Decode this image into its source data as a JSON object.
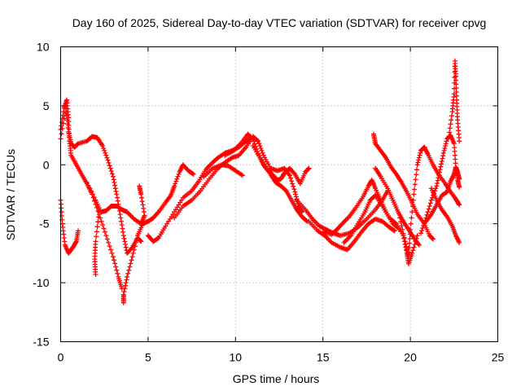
{
  "chart_data": {
    "type": "scatter",
    "title": "Day 160 of 2025, Sidereal Day-to-day VTEC variation (SDTVAR) for receiver cpvg",
    "xlabel": "GPS time / hours",
    "ylabel": "SDTVAR / TECUs",
    "xlim": [
      0,
      25
    ],
    "ylim": [
      -15,
      10
    ],
    "xticks": [
      "0",
      "5",
      "10",
      "15",
      "20",
      "25"
    ],
    "yticks": [
      "-15",
      "-10",
      "-5",
      "0",
      "5",
      "10"
    ],
    "grid": true,
    "marker": "plus",
    "color": "#ff0000",
    "series": [
      {
        "name": "trace-1",
        "points": [
          [
            0.0,
            3.0
          ],
          [
            0.2,
            4.8
          ],
          [
            0.35,
            5.5
          ],
          [
            0.45,
            4.0
          ],
          [
            0.5,
            2.0
          ],
          [
            0.6,
            0.8
          ],
          [
            0.9,
            0.0
          ],
          [
            1.2,
            -0.8
          ],
          [
            1.5,
            -1.6
          ],
          [
            1.8,
            -2.5
          ],
          [
            2.2,
            -4.2
          ],
          [
            2.6,
            -6.0
          ],
          [
            3.0,
            -7.8
          ],
          [
            3.3,
            -9.5
          ],
          [
            3.5,
            -10.5
          ]
        ]
      },
      {
        "name": "trace-2",
        "points": [
          [
            0.0,
            2.2
          ],
          [
            0.3,
            4.8
          ],
          [
            0.45,
            2.8
          ],
          [
            0.6,
            1.8
          ],
          [
            0.8,
            1.5
          ],
          [
            1.0,
            1.8
          ],
          [
            1.5,
            2.0
          ],
          [
            1.8,
            2.4
          ],
          [
            2.1,
            2.3
          ],
          [
            2.4,
            1.6
          ],
          [
            2.7,
            0.4
          ],
          [
            3.0,
            -1.0
          ],
          [
            3.2,
            -2.5
          ],
          [
            3.4,
            -4.2
          ],
          [
            3.6,
            -6.0
          ],
          [
            3.8,
            -7.5
          ],
          [
            4.1,
            -7.0
          ],
          [
            4.4,
            -6.2
          ],
          [
            4.6,
            -6.5
          ]
        ]
      },
      {
        "name": "trace-3",
        "points": [
          [
            0.0,
            -3.0
          ],
          [
            0.1,
            -5.0
          ],
          [
            0.25,
            -6.8
          ],
          [
            0.45,
            -7.5
          ],
          [
            0.7,
            -7.0
          ],
          [
            0.9,
            -6.5
          ],
          [
            1.0,
            -5.6
          ]
        ]
      },
      {
        "name": "trace-4",
        "points": [
          [
            1.5,
            -1.5
          ],
          [
            2.0,
            -3.0
          ],
          [
            2.3,
            -4.0
          ],
          [
            2.6,
            -3.9
          ],
          [
            2.9,
            -3.5
          ],
          [
            3.2,
            -3.5
          ],
          [
            3.5,
            -3.8
          ],
          [
            3.8,
            -4.0
          ],
          [
            4.2,
            -4.6
          ],
          [
            4.6,
            -5.0
          ],
          [
            4.8,
            -4.3
          ],
          [
            4.6,
            -2.5
          ],
          [
            4.5,
            -1.8
          ]
        ]
      },
      {
        "name": "trace-5",
        "points": [
          [
            2.2,
            -4.0
          ],
          [
            2.0,
            -6.5
          ],
          [
            1.95,
            -8.0
          ],
          [
            2.0,
            -9.3
          ]
        ]
      },
      {
        "name": "trace-6",
        "points": [
          [
            3.6,
            -11.7
          ],
          [
            3.6,
            -11.0
          ],
          [
            3.8,
            -9.5
          ],
          [
            4.1,
            -7.8
          ],
          [
            4.4,
            -6.0
          ],
          [
            4.7,
            -5.0
          ],
          [
            5.0,
            -4.8
          ],
          [
            5.3,
            -4.5
          ],
          [
            5.6,
            -4.0
          ],
          [
            6.0,
            -3.2
          ],
          [
            6.3,
            -2.6
          ],
          [
            6.5,
            -1.8
          ],
          [
            6.8,
            -0.6
          ],
          [
            7.0,
            0.0
          ],
          [
            7.3,
            -0.5
          ],
          [
            7.6,
            -0.8
          ]
        ]
      },
      {
        "name": "trace-7",
        "points": [
          [
            5.0,
            -6.0
          ],
          [
            5.3,
            -6.5
          ],
          [
            5.6,
            -6.2
          ],
          [
            6.0,
            -5.2
          ],
          [
            6.5,
            -4.0
          ],
          [
            7.0,
            -2.8
          ],
          [
            7.5,
            -2.2
          ],
          [
            7.9,
            -1.4
          ],
          [
            8.3,
            -0.4
          ],
          [
            8.7,
            0.2
          ],
          [
            9.0,
            0.6
          ],
          [
            9.4,
            1.0
          ],
          [
            9.8,
            1.2
          ],
          [
            10.2,
            1.5
          ],
          [
            10.5,
            1.9
          ],
          [
            10.8,
            2.2
          ]
        ]
      },
      {
        "name": "trace-8",
        "points": [
          [
            6.5,
            -4.5
          ],
          [
            7.0,
            -3.5
          ],
          [
            7.5,
            -3.0
          ],
          [
            8.0,
            -2.2
          ],
          [
            8.5,
            -1.2
          ],
          [
            9.0,
            -0.3
          ],
          [
            9.4,
            0.2
          ],
          [
            9.8,
            0.6
          ],
          [
            10.2,
            0.8
          ],
          [
            10.6,
            1.5
          ],
          [
            11.0,
            2.4
          ],
          [
            11.3,
            2.0
          ],
          [
            11.6,
            0.8
          ],
          [
            12.0,
            -0.3
          ],
          [
            12.4,
            -0.5
          ],
          [
            12.8,
            -0.3
          ],
          [
            13.1,
            -0.9
          ],
          [
            13.4,
            -2.3
          ],
          [
            13.6,
            -3.5
          ],
          [
            13.8,
            -4.0
          ]
        ]
      },
      {
        "name": "trace-9",
        "points": [
          [
            8.2,
            -1.0
          ],
          [
            8.7,
            -0.3
          ],
          [
            9.2,
            0.0
          ],
          [
            9.6,
            -0.1
          ],
          [
            10.0,
            -0.5
          ],
          [
            10.4,
            -0.9
          ]
        ]
      },
      {
        "name": "trace-10",
        "points": [
          [
            9.4,
            0.8
          ],
          [
            9.9,
            1.2
          ],
          [
            10.3,
            1.8
          ],
          [
            10.7,
            2.6
          ],
          [
            11.0,
            2.2
          ],
          [
            11.3,
            0.9
          ],
          [
            11.6,
            0.0
          ],
          [
            12.0,
            -0.8
          ],
          [
            12.3,
            -1.5
          ],
          [
            12.6,
            -1.8
          ],
          [
            12.9,
            -2.2
          ],
          [
            13.2,
            -3.0
          ],
          [
            13.5,
            -3.8
          ],
          [
            13.8,
            -4.4
          ],
          [
            14.1,
            -4.8
          ]
        ]
      },
      {
        "name": "trace-11",
        "points": [
          [
            11.0,
            1.6
          ],
          [
            11.4,
            0.6
          ],
          [
            11.7,
            -0.2
          ],
          [
            12.1,
            -0.8
          ],
          [
            12.4,
            -1.3
          ],
          [
            12.6,
            -1.2
          ],
          [
            12.8,
            -0.7
          ],
          [
            13.1,
            -0.3
          ],
          [
            13.4,
            -0.8
          ],
          [
            13.7,
            -1.6
          ],
          [
            14.0,
            -0.6
          ],
          [
            14.2,
            -0.3
          ]
        ]
      },
      {
        "name": "trace-12",
        "points": [
          [
            13.5,
            -3.0
          ],
          [
            14.0,
            -3.8
          ],
          [
            14.4,
            -4.6
          ],
          [
            14.8,
            -5.2
          ],
          [
            15.2,
            -5.5
          ],
          [
            15.6,
            -5.8
          ],
          [
            16.0,
            -6.0
          ],
          [
            16.5,
            -5.8
          ],
          [
            17.0,
            -5.3
          ],
          [
            17.5,
            -4.6
          ],
          [
            18.0,
            -3.8
          ],
          [
            18.4,
            -3.0
          ],
          [
            18.7,
            -2.2
          ]
        ]
      },
      {
        "name": "trace-13",
        "points": [
          [
            14.2,
            -4.8
          ],
          [
            14.7,
            -5.6
          ],
          [
            15.1,
            -6.0
          ],
          [
            15.5,
            -6.6
          ],
          [
            16.0,
            -7.0
          ],
          [
            16.4,
            -7.2
          ],
          [
            16.8,
            -6.5
          ],
          [
            17.2,
            -5.7
          ],
          [
            17.6,
            -5.0
          ],
          [
            18.0,
            -4.6
          ],
          [
            18.4,
            -4.8
          ],
          [
            18.8,
            -5.3
          ],
          [
            19.1,
            -5.6
          ]
        ]
      },
      {
        "name": "trace-14",
        "points": [
          [
            15.0,
            -5.7
          ],
          [
            15.5,
            -5.9
          ],
          [
            15.8,
            -5.5
          ],
          [
            16.1,
            -5.0
          ],
          [
            16.5,
            -4.4
          ],
          [
            16.9,
            -3.6
          ],
          [
            17.3,
            -2.7
          ],
          [
            17.6,
            -1.8
          ],
          [
            17.8,
            -1.3
          ],
          [
            18.0,
            -2.0
          ],
          [
            18.3,
            -3.0
          ],
          [
            18.6,
            -4.0
          ],
          [
            19.0,
            -5.0
          ],
          [
            19.4,
            -5.5
          ]
        ]
      },
      {
        "name": "trace-15",
        "points": [
          [
            16.2,
            -6.6
          ],
          [
            16.6,
            -6.0
          ],
          [
            17.0,
            -5.0
          ],
          [
            17.4,
            -4.0
          ],
          [
            17.7,
            -3.0
          ],
          [
            18.0,
            -2.6
          ],
          [
            18.4,
            -3.5
          ],
          [
            18.8,
            -4.5
          ],
          [
            19.2,
            -5.0
          ],
          [
            19.6,
            -6.0
          ],
          [
            19.8,
            -7.5
          ],
          [
            19.9,
            -8.4
          ],
          [
            20.1,
            -7.5
          ],
          [
            20.4,
            -6.0
          ]
        ]
      },
      {
        "name": "trace-16",
        "points": [
          [
            17.9,
            2.6
          ],
          [
            18.0,
            1.8
          ],
          [
            18.3,
            1.2
          ],
          [
            18.6,
            0.6
          ],
          [
            18.9,
            -0.2
          ],
          [
            19.2,
            -0.8
          ],
          [
            19.5,
            -1.5
          ],
          [
            19.8,
            -2.3
          ],
          [
            20.1,
            -3.2
          ],
          [
            20.4,
            -4.2
          ],
          [
            20.8,
            -5.0
          ],
          [
            21.1,
            -6.0
          ],
          [
            21.3,
            -6.3
          ]
        ]
      },
      {
        "name": "trace-17",
        "points": [
          [
            18.0,
            -0.3
          ],
          [
            18.3,
            -1.0
          ],
          [
            18.7,
            -2.0
          ],
          [
            19.0,
            -3.0
          ],
          [
            19.3,
            -4.0
          ],
          [
            19.6,
            -4.8
          ],
          [
            19.9,
            -5.5
          ],
          [
            20.2,
            -6.2
          ],
          [
            20.5,
            -6.8
          ]
        ]
      },
      {
        "name": "trace-18",
        "points": [
          [
            19.4,
            -4.5
          ],
          [
            19.7,
            -6.5
          ],
          [
            19.9,
            -7.8
          ],
          [
            20.0,
            -5.5
          ],
          [
            20.2,
            -2.5
          ],
          [
            20.4,
            0.0
          ],
          [
            20.6,
            1.2
          ],
          [
            20.8,
            1.5
          ],
          [
            21.0,
            0.9
          ],
          [
            21.3,
            0.0
          ],
          [
            21.6,
            -0.8
          ],
          [
            22.0,
            -1.6
          ],
          [
            22.3,
            -2.3
          ],
          [
            22.6,
            -2.9
          ],
          [
            22.8,
            -3.4
          ]
        ]
      },
      {
        "name": "trace-19",
        "points": [
          [
            20.6,
            -5.8
          ],
          [
            20.9,
            -4.5
          ],
          [
            21.2,
            -3.0
          ],
          [
            21.5,
            -1.8
          ],
          [
            21.7,
            -0.4
          ],
          [
            21.9,
            1.0
          ],
          [
            22.1,
            2.2
          ],
          [
            22.3,
            2.5
          ],
          [
            22.5,
            1.8
          ],
          [
            22.6,
            -0.2
          ],
          [
            22.7,
            -1.3
          ],
          [
            22.8,
            -1.9
          ]
        ]
      },
      {
        "name": "trace-20",
        "points": [
          [
            20.9,
            -4.8
          ],
          [
            21.2,
            -4.2
          ],
          [
            21.5,
            -3.4
          ],
          [
            21.8,
            -2.6
          ],
          [
            22.1,
            -2.3
          ],
          [
            22.3,
            -1.4
          ],
          [
            22.5,
            -0.8
          ],
          [
            22.6,
            -0.2
          ],
          [
            22.7,
            -0.6
          ],
          [
            22.8,
            -1.2
          ]
        ]
      },
      {
        "name": "trace-21",
        "points": [
          [
            21.2,
            -2.0
          ],
          [
            21.5,
            -3.0
          ],
          [
            21.8,
            -3.8
          ],
          [
            22.1,
            -4.4
          ],
          [
            22.4,
            -5.2
          ],
          [
            22.6,
            -6.0
          ],
          [
            22.8,
            -6.6
          ]
        ]
      },
      {
        "name": "trace-22",
        "points": [
          [
            22.2,
            2.4
          ],
          [
            22.4,
            4.5
          ],
          [
            22.5,
            6.0
          ],
          [
            22.55,
            8.8
          ],
          [
            22.6,
            7.5
          ],
          [
            22.65,
            5.5
          ],
          [
            22.7,
            3.8
          ],
          [
            22.8,
            2.0
          ]
        ]
      }
    ]
  }
}
